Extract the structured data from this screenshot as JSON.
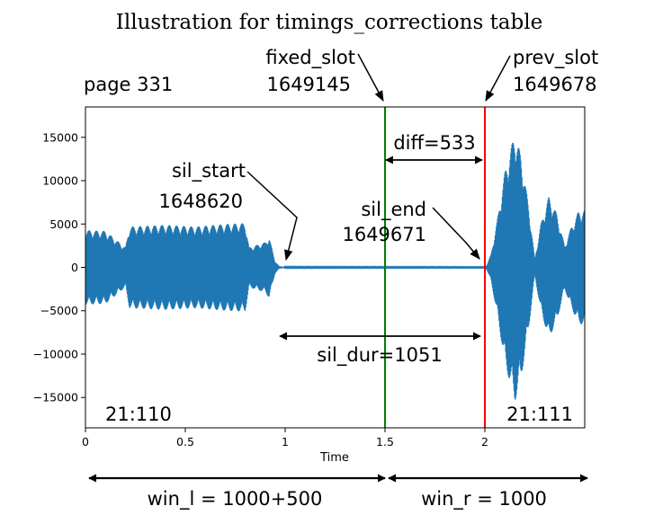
{
  "chart_data": {
    "type": "line",
    "title": "Illustration for timings_corrections table",
    "xlabel": "Time",
    "ylabel": "",
    "xlim": [
      0,
      2.5
    ],
    "ylim": [
      -18500,
      18500
    ],
    "x_ticks": [
      0,
      0.5,
      1,
      1.5,
      2
    ],
    "x_tick_labels": [
      "0",
      "0.5",
      "1",
      "1.5",
      "2"
    ],
    "y_ticks": [
      15000,
      10000,
      5000,
      0,
      -5000,
      -10000,
      -15000
    ],
    "y_tick_labels": [
      "15000",
      "10000",
      "5000",
      "0",
      "−5000",
      "−10000",
      "−15000"
    ],
    "waveform_color": "#1f77b4",
    "envelope": [
      {
        "x": 0.0,
        "amp": 4300
      },
      {
        "x": 0.1,
        "amp": 4200
      },
      {
        "x": 0.2,
        "amp": 2300
      },
      {
        "x": 0.22,
        "amp": 4700
      },
      {
        "x": 0.4,
        "amp": 4900
      },
      {
        "x": 0.55,
        "amp": 4700
      },
      {
        "x": 0.7,
        "amp": 5000
      },
      {
        "x": 0.8,
        "amp": 5100
      },
      {
        "x": 0.82,
        "amp": 2300
      },
      {
        "x": 0.9,
        "amp": 2900
      },
      {
        "x": 0.92,
        "amp": 3500
      },
      {
        "x": 0.95,
        "amp": 700
      },
      {
        "x": 0.97,
        "amp": 150
      },
      {
        "x": 1.0,
        "amp": 60
      },
      {
        "x": 2.0,
        "amp": 50
      },
      {
        "x": 2.01,
        "amp": 300
      },
      {
        "x": 2.03,
        "amp": 1500
      },
      {
        "x": 2.06,
        "amp": 5200
      },
      {
        "x": 2.1,
        "amp": 11000
      },
      {
        "x": 2.15,
        "amp": 15500
      },
      {
        "x": 2.18,
        "amp": 13000
      },
      {
        "x": 2.22,
        "amp": 7000
      },
      {
        "x": 2.25,
        "amp": 1000
      },
      {
        "x": 2.28,
        "amp": 5000
      },
      {
        "x": 2.32,
        "amp": 8200
      },
      {
        "x": 2.36,
        "amp": 6200
      },
      {
        "x": 2.4,
        "amp": 2500
      },
      {
        "x": 2.43,
        "amp": 4500
      },
      {
        "x": 2.47,
        "amp": 6500
      },
      {
        "x": 2.5,
        "amp": 6600
      }
    ],
    "vlines": [
      {
        "x": 1.5,
        "color": "#008000"
      },
      {
        "x": 2.0,
        "color": "#ff0000"
      }
    ]
  },
  "labels": {
    "page": "page 331",
    "fixed_slot": "fixed_slot",
    "fixed_slot_value": "1649145",
    "prev_slot": "prev_slot",
    "prev_slot_value": "1649678",
    "diff": "diff=533",
    "sil_start": "sil_start",
    "sil_start_value": "1648620",
    "sil_end": "sil_end",
    "sil_end_value": "1649671",
    "sil_dur": "sil_dur=1051",
    "seg_left": "21:110",
    "seg_right": "21:111",
    "win_l": "win_l = 1000+500",
    "win_r": "win_r = 1000"
  }
}
